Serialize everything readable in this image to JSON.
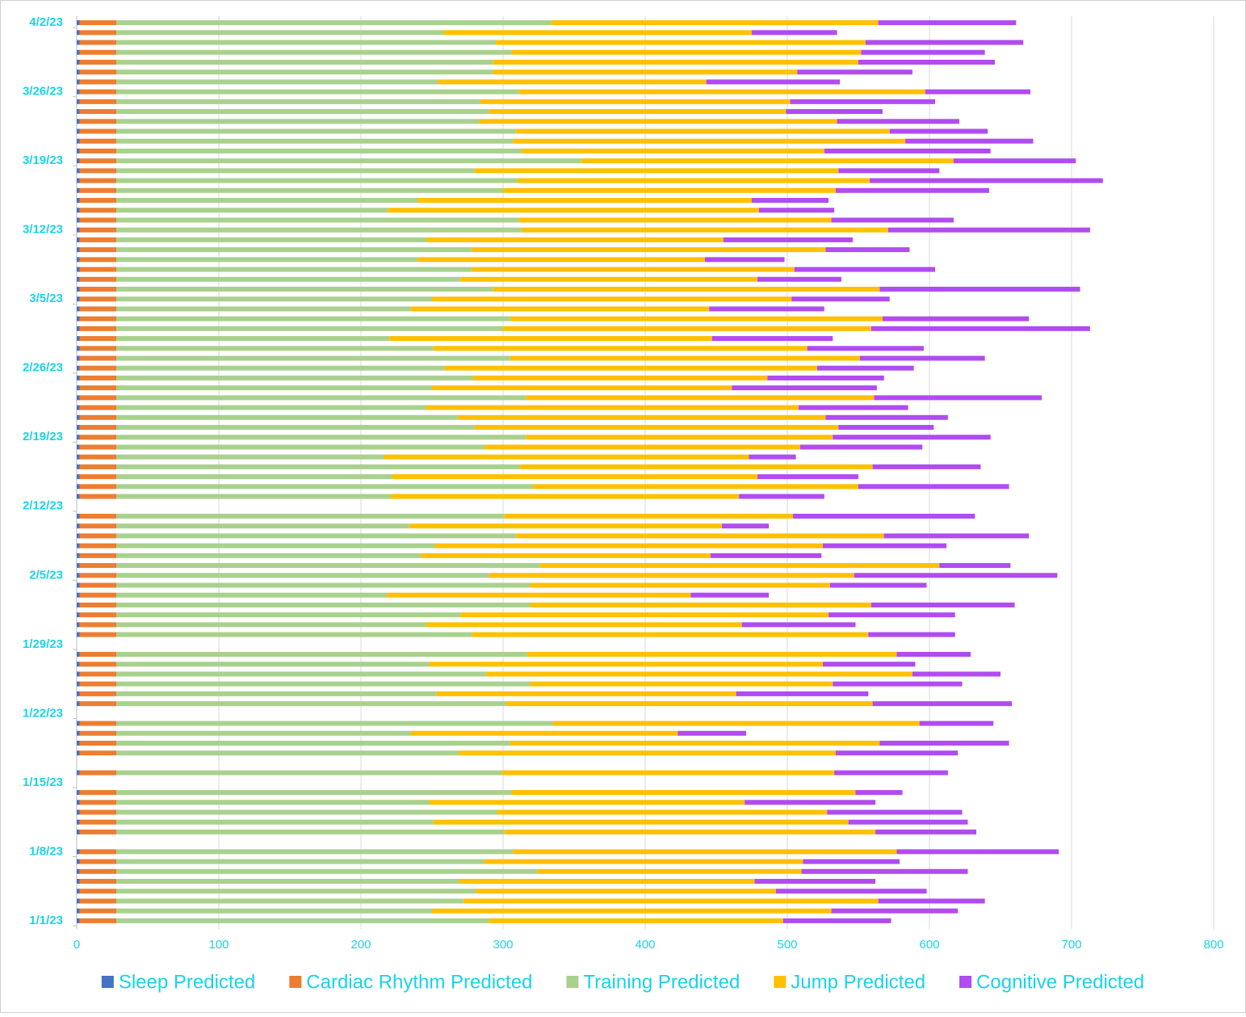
{
  "chart_data": {
    "type": "stacked-bar-horizontal",
    "categories": [
      "1/1/23",
      null,
      null,
      null,
      null,
      null,
      null,
      "1/8/23",
      null,
      null,
      null,
      null,
      null,
      null,
      "1/15/23",
      null,
      null,
      null,
      null,
      null,
      null,
      "1/22/23",
      null,
      null,
      null,
      null,
      null,
      null,
      "1/29/23",
      null,
      null,
      null,
      null,
      null,
      null,
      "2/5/23",
      null,
      null,
      null,
      null,
      null,
      null,
      "2/12/23",
      null,
      null,
      null,
      null,
      null,
      null,
      "2/19/23",
      null,
      null,
      null,
      null,
      null,
      null,
      "2/26/23",
      null,
      null,
      null,
      null,
      null,
      null,
      "3/5/23",
      null,
      null,
      null,
      null,
      null,
      null,
      "3/12/23",
      null,
      null,
      null,
      null,
      null,
      null,
      "3/19/23",
      null,
      null,
      null,
      null,
      null,
      null,
      "3/26/23",
      null,
      null,
      null,
      null,
      null,
      null,
      "4/2/23"
    ],
    "series": [
      {
        "name": "Sleep Predicted",
        "color": "#4472c4",
        "values": [
          2,
          2,
          2,
          2,
          2,
          2,
          2,
          2,
          null,
          2,
          2,
          2,
          2,
          2,
          null,
          2,
          null,
          2,
          2,
          2,
          2,
          null,
          2,
          2,
          2,
          2,
          2,
          2,
          null,
          2,
          2,
          2,
          2,
          2,
          2,
          2,
          2,
          2,
          2,
          2,
          2,
          2,
          null,
          2,
          2,
          2,
          2,
          2,
          2,
          2,
          2,
          2,
          2,
          2,
          2,
          2,
          2,
          2,
          2,
          2,
          2,
          2,
          2,
          2,
          2,
          2,
          2,
          2,
          2,
          2,
          2,
          2,
          2,
          2,
          2,
          2,
          2,
          2,
          2,
          2,
          2,
          2,
          2,
          2,
          2,
          2,
          2,
          2,
          2,
          2,
          2,
          2
        ]
      },
      {
        "name": "Cardiac Rhythm Predicted",
        "color": "#ed7d31",
        "values": [
          26,
          26,
          26,
          26,
          26,
          26,
          26,
          26,
          null,
          26,
          26,
          26,
          26,
          26,
          null,
          26,
          null,
          26,
          26,
          26,
          26,
          null,
          26,
          26,
          26,
          26,
          26,
          26,
          null,
          26,
          26,
          26,
          26,
          26,
          26,
          26,
          26,
          26,
          26,
          26,
          26,
          26,
          null,
          26,
          26,
          26,
          26,
          26,
          26,
          26,
          26,
          26,
          26,
          26,
          26,
          26,
          26,
          26,
          26,
          26,
          26,
          26,
          26,
          26,
          26,
          26,
          26,
          26,
          26,
          26,
          26,
          26,
          26,
          26,
          26,
          26,
          26,
          26,
          26,
          26,
          26,
          26,
          26,
          26,
          26,
          26,
          26,
          26,
          26,
          26,
          26,
          26
        ]
      },
      {
        "name": "Training Predicted",
        "color": "#a9d18e",
        "values": [
          262,
          222,
          244,
          253,
          241,
          296,
          259,
          279,
          null,
          273,
          223,
          268,
          220,
          278,
          null,
          271,
          null,
          241,
          277,
          207,
          307,
          null,
          274,
          225,
          291,
          260,
          220,
          289,
          null,
          250,
          218,
          242,
          291,
          190,
          291,
          262,
          298,
          214,
          224,
          281,
          206,
          273,
          null,
          193,
          293,
          194,
          284,
          188,
          259,
          288,
          252,
          240,
          218,
          288,
          222,
          251,
          231,
          277,
          223,
          192,
          272,
          277,
          207,
          222,
          265,
          242,
          250,
          212,
          250,
          218,
          285,
          283,
          191,
          212,
          272,
          282,
          252,
          327,
          285,
          279,
          281,
          255,
          262,
          256,
          283,
          226,
          265,
          265,
          278,
          267,
          230,
          306
        ]
      },
      {
        "name": "Jump Predicted",
        "color": "#ffc000",
        "values": [
          207,
          281,
          292,
          211,
          208,
          186,
          224,
          270,
          null,
          261,
          292,
          232,
          222,
          242,
          null,
          234,
          null,
          265,
          260,
          188,
          258,
          null,
          258,
          211,
          213,
          300,
          277,
          260,
          null,
          279,
          222,
          259,
          240,
          214,
          211,
          257,
          281,
          204,
          273,
          259,
          220,
          203,
          null,
          245,
          229,
          257,
          248,
          257,
          222,
          216,
          256,
          259,
          262,
          245,
          211,
          207,
          262,
          246,
          263,
          227,
          259,
          262,
          210,
          253,
          272,
          209,
          227,
          202,
          249,
          209,
          258,
          220,
          261,
          235,
          234,
          248,
          256,
          262,
          213,
          276,
          263,
          252,
          209,
          218,
          286,
          189,
          214,
          257,
          246,
          260,
          217,
          230
        ]
      },
      {
        "name": "Cognitive Predicted",
        "color": "#b04cf0",
        "values": [
          76,
          89,
          75,
          106,
          85,
          117,
          68,
          114,
          null,
          71,
          84,
          95,
          92,
          33,
          null,
          80,
          null,
          86,
          91,
          48,
          52,
          null,
          98,
          93,
          91,
          62,
          65,
          52,
          null,
          61,
          80,
          89,
          101,
          55,
          68,
          143,
          50,
          78,
          87,
          102,
          33,
          128,
          null,
          60,
          106,
          71,
          76,
          33,
          86,
          111,
          67,
          86,
          77,
          118,
          102,
          82,
          68,
          88,
          82,
          85,
          154,
          103,
          81,
          69,
          141,
          59,
          99,
          56,
          59,
          91,
          142,
          86,
          53,
          54,
          108,
          164,
          71,
          86,
          117,
          90,
          69,
          86,
          68,
          102,
          74,
          94,
          81,
          96,
          87,
          111,
          60,
          97
        ]
      }
    ],
    "xlim": [
      0,
      800
    ],
    "xticks": [
      0,
      100,
      200,
      300,
      400,
      500,
      600,
      700,
      800
    ],
    "grid": true,
    "legend": "bottom"
  }
}
